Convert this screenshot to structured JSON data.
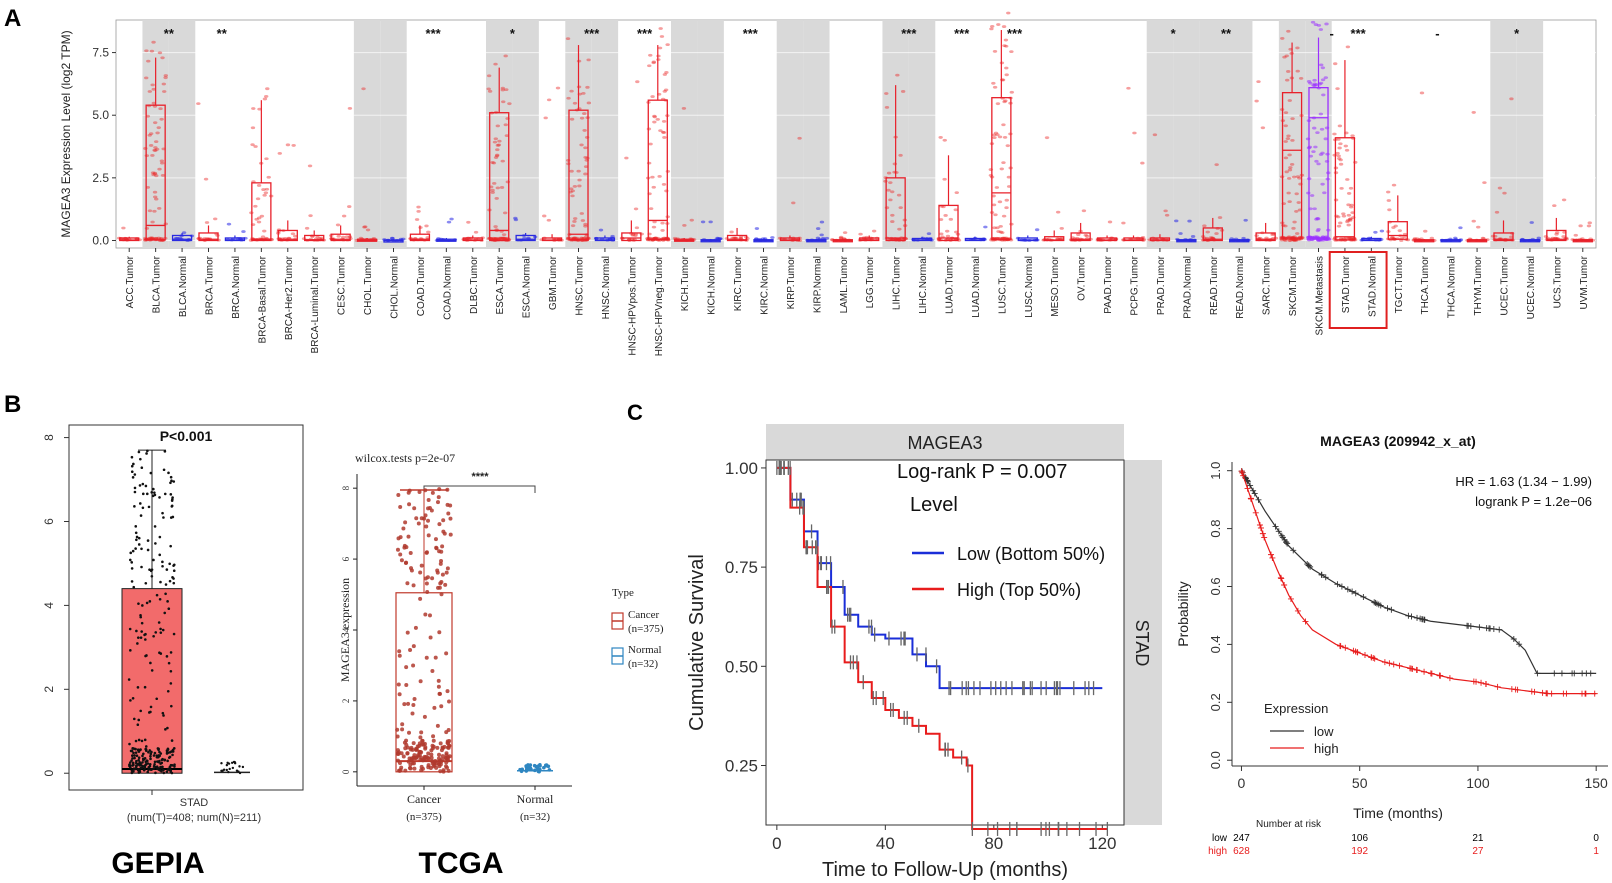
{
  "panel_labels": {
    "a": "A",
    "b": "B",
    "c": "C"
  },
  "chart_data": [
    {
      "id": "pan_cancer",
      "type": "box",
      "ylabel": "MAGEA3 Expression Level (log2 TPM)",
      "yticks": [
        "0.0",
        "2.5",
        "5.0",
        "7.5"
      ],
      "ylim": [
        -0.3,
        8.8
      ],
      "groups": [
        {
          "label": "ACC.Tumor",
          "shade": false,
          "sig": "",
          "kind": "tumor",
          "q1": 0,
          "med": 0.02,
          "q3": 0.1,
          "whi": 0.15
        },
        {
          "label": "BLCA.Tumor",
          "shade": true,
          "sig": "**",
          "kind": "tumor",
          "q1": 0.02,
          "med": 0.6,
          "q3": 5.4,
          "whi": 7.3
        },
        {
          "label": "BLCA.Normal",
          "shade": true,
          "sig": "",
          "kind": "normal",
          "q1": 0,
          "med": 0.05,
          "q3": 0.2,
          "whi": 0.3
        },
        {
          "label": "BRCA.Tumor",
          "shade": false,
          "sig": "**",
          "kind": "tumor",
          "q1": 0,
          "med": 0.05,
          "q3": 0.3,
          "whi": 0.6
        },
        {
          "label": "BRCA.Normal",
          "shade": false,
          "sig": "",
          "kind": "normal",
          "q1": 0,
          "med": 0.02,
          "q3": 0.1,
          "whi": 0.2
        },
        {
          "label": "BRCA-Basal.Tumor",
          "shade": false,
          "sig": "",
          "kind": "tumor",
          "q1": 0,
          "med": 0.05,
          "q3": 2.3,
          "whi": 5.6
        },
        {
          "label": "BRCA-Her2.Tumor",
          "shade": false,
          "sig": "",
          "kind": "tumor",
          "q1": 0,
          "med": 0.05,
          "q3": 0.4,
          "whi": 0.8
        },
        {
          "label": "BRCA-Luminal.Tumor",
          "shade": false,
          "sig": "",
          "kind": "tumor",
          "q1": 0,
          "med": 0.03,
          "q3": 0.2,
          "whi": 0.4
        },
        {
          "label": "CESC.Tumor",
          "shade": false,
          "sig": "",
          "kind": "tumor",
          "q1": 0,
          "med": 0.05,
          "q3": 0.25,
          "whi": 0.6
        },
        {
          "label": "CHOL.Tumor",
          "shade": true,
          "sig": "",
          "kind": "tumor",
          "q1": 0,
          "med": 0.0,
          "q3": 0.05,
          "whi": 0.1
        },
        {
          "label": "CHOL.Normal",
          "shade": true,
          "sig": "",
          "kind": "normal",
          "q1": 0,
          "med": 0.0,
          "q3": 0.02,
          "whi": 0.05
        },
        {
          "label": "COAD.Tumor",
          "shade": false,
          "sig": "***",
          "kind": "tumor",
          "q1": 0,
          "med": 0.05,
          "q3": 0.25,
          "whi": 0.6
        },
        {
          "label": "COAD.Normal",
          "shade": false,
          "sig": "",
          "kind": "normal",
          "q1": 0,
          "med": 0.0,
          "q3": 0.05,
          "whi": 0.1
        },
        {
          "label": "DLBC.Tumor",
          "shade": false,
          "sig": "",
          "kind": "tumor",
          "q1": 0,
          "med": 0.02,
          "q3": 0.1,
          "whi": 0.2
        },
        {
          "label": "ESCA.Tumor",
          "shade": true,
          "sig": "*",
          "kind": "tumor",
          "q1": 0,
          "med": 0.4,
          "q3": 5.1,
          "whi": 6.9
        },
        {
          "label": "ESCA.Normal",
          "shade": true,
          "sig": "",
          "kind": "normal",
          "q1": 0,
          "med": 0.05,
          "q3": 0.2,
          "whi": 0.3
        },
        {
          "label": "GBM.Tumor",
          "shade": false,
          "sig": "",
          "kind": "tumor",
          "q1": 0,
          "med": 0.02,
          "q3": 0.1,
          "whi": 0.25
        },
        {
          "label": "HNSC.Tumor",
          "shade": true,
          "sig": "***",
          "kind": "tumor",
          "q1": 0.02,
          "med": 0.25,
          "q3": 5.2,
          "whi": 7.8
        },
        {
          "label": "HNSC.Normal",
          "shade": true,
          "sig": "",
          "kind": "normal",
          "q1": 0,
          "med": 0.02,
          "q3": 0.1,
          "whi": 0.2
        },
        {
          "label": "HNSC-HPVpos.Tumor",
          "shade": false,
          "sig": "***",
          "kind": "tumor",
          "q1": 0,
          "med": 0.1,
          "q3": 0.3,
          "whi": 0.8
        },
        {
          "label": "HNSC-HPVneg.Tumor",
          "shade": false,
          "sig": "",
          "kind": "tumor",
          "q1": 0.05,
          "med": 0.8,
          "q3": 5.6,
          "whi": 7.8
        },
        {
          "label": "KICH.Tumor",
          "shade": true,
          "sig": "",
          "kind": "tumor",
          "q1": 0,
          "med": 0.0,
          "q3": 0.05,
          "whi": 0.1
        },
        {
          "label": "KICH.Normal",
          "shade": true,
          "sig": "",
          "kind": "normal",
          "q1": 0,
          "med": 0.0,
          "q3": 0.03,
          "whi": 0.06
        },
        {
          "label": "KIRC.Tumor",
          "shade": false,
          "sig": "***",
          "kind": "tumor",
          "q1": 0,
          "med": 0.03,
          "q3": 0.2,
          "whi": 0.5
        },
        {
          "label": "KIRC.Normal",
          "shade": false,
          "sig": "",
          "kind": "normal",
          "q1": 0,
          "med": 0.0,
          "q3": 0.03,
          "whi": 0.06
        },
        {
          "label": "KIRP.Tumor",
          "shade": true,
          "sig": "",
          "kind": "tumor",
          "q1": 0,
          "med": 0.02,
          "q3": 0.1,
          "whi": 0.2
        },
        {
          "label": "KIRP.Normal",
          "shade": true,
          "sig": "",
          "kind": "normal",
          "q1": 0,
          "med": 0.0,
          "q3": 0.03,
          "whi": 0.06
        },
        {
          "label": "LAML.Tumor",
          "shade": false,
          "sig": "",
          "kind": "tumor",
          "q1": 0,
          "med": 0.0,
          "q3": 0.03,
          "whi": 0.06
        },
        {
          "label": "LGG.Tumor",
          "shade": false,
          "sig": "",
          "kind": "tumor",
          "q1": 0,
          "med": 0.02,
          "q3": 0.1,
          "whi": 0.2
        },
        {
          "label": "LIHC.Tumor",
          "shade": true,
          "sig": "***",
          "kind": "tumor",
          "q1": 0,
          "med": 0.1,
          "q3": 2.5,
          "whi": 6.2
        },
        {
          "label": "LIHC.Normal",
          "shade": true,
          "sig": "",
          "kind": "normal",
          "q1": 0,
          "med": 0.02,
          "q3": 0.08,
          "whi": 0.15
        },
        {
          "label": "LUAD.Tumor",
          "shade": false,
          "sig": "***",
          "kind": "tumor",
          "q1": 0,
          "med": 0.1,
          "q3": 1.4,
          "whi": 3.4
        },
        {
          "label": "LUAD.Normal",
          "shade": false,
          "sig": "",
          "kind": "normal",
          "q1": 0,
          "med": 0.02,
          "q3": 0.08,
          "whi": 0.15
        },
        {
          "label": "LUSC.Tumor",
          "shade": false,
          "sig": "***",
          "kind": "tumor",
          "q1": 0.05,
          "med": 1.9,
          "q3": 5.7,
          "whi": 8.4
        },
        {
          "label": "LUSC.Normal",
          "shade": false,
          "sig": "",
          "kind": "normal",
          "q1": 0,
          "med": 0.02,
          "q3": 0.1,
          "whi": 0.2
        },
        {
          "label": "MESO.Tumor",
          "shade": false,
          "sig": "",
          "kind": "tumor",
          "q1": 0,
          "med": 0.02,
          "q3": 0.15,
          "whi": 0.4
        },
        {
          "label": "OV.Tumor",
          "shade": false,
          "sig": "",
          "kind": "tumor",
          "q1": 0,
          "med": 0.05,
          "q3": 0.3,
          "whi": 0.7
        },
        {
          "label": "PAAD.Tumor",
          "shade": false,
          "sig": "",
          "kind": "tumor",
          "q1": 0,
          "med": 0.02,
          "q3": 0.1,
          "whi": 0.2
        },
        {
          "label": "PCPG.Tumor",
          "shade": false,
          "sig": "",
          "kind": "tumor",
          "q1": 0,
          "med": 0.02,
          "q3": 0.1,
          "whi": 0.2
        },
        {
          "label": "PRAD.Tumor",
          "shade": true,
          "sig": "*",
          "kind": "tumor",
          "q1": 0,
          "med": 0.02,
          "q3": 0.1,
          "whi": 0.25
        },
        {
          "label": "PRAD.Normal",
          "shade": true,
          "sig": "",
          "kind": "normal",
          "q1": 0,
          "med": 0.0,
          "q3": 0.03,
          "whi": 0.06
        },
        {
          "label": "READ.Tumor",
          "shade": true,
          "sig": "**",
          "kind": "tumor",
          "q1": 0,
          "med": 0.05,
          "q3": 0.5,
          "whi": 0.9
        },
        {
          "label": "READ.Normal",
          "shade": true,
          "sig": "",
          "kind": "normal",
          "q1": 0,
          "med": 0.0,
          "q3": 0.03,
          "whi": 0.06
        },
        {
          "label": "SARC.Tumor",
          "shade": false,
          "sig": "",
          "kind": "tumor",
          "q1": 0,
          "med": 0.05,
          "q3": 0.3,
          "whi": 0.7
        },
        {
          "label": "SKCM.Tumor",
          "shade": true,
          "sig": "",
          "kind": "tumor",
          "q1": 0.1,
          "med": 3.6,
          "q3": 5.9,
          "whi": 7.9
        },
        {
          "label": "SKCM.Metastasis",
          "shade": true,
          "sig": "-",
          "kind": "metastasis",
          "q1": 0.1,
          "med": 4.9,
          "q3": 6.1,
          "whi": 8.1
        },
        {
          "label": "STAD.Tumor",
          "shade": false,
          "sig": "***",
          "kind": "tumor",
          "q1": 0.02,
          "med": 0.15,
          "q3": 4.1,
          "whi": 7.2
        },
        {
          "label": "STAD.Normal",
          "shade": false,
          "sig": "",
          "kind": "normal",
          "q1": 0,
          "med": 0.02,
          "q3": 0.08,
          "whi": 0.15
        },
        {
          "label": "TGCT.Tumor",
          "shade": false,
          "sig": "",
          "kind": "tumor",
          "q1": 0.05,
          "med": 0.2,
          "q3": 0.75,
          "whi": 1.8
        },
        {
          "label": "THCA.Tumor",
          "shade": false,
          "sig": "-",
          "kind": "tumor",
          "q1": 0,
          "med": 0.0,
          "q3": 0.03,
          "whi": 0.06
        },
        {
          "label": "THCA.Normal",
          "shade": false,
          "sig": "",
          "kind": "normal",
          "q1": 0,
          "med": 0.0,
          "q3": 0.03,
          "whi": 0.06
        },
        {
          "label": "THYM.Tumor",
          "shade": false,
          "sig": "",
          "kind": "tumor",
          "q1": 0,
          "med": 0.0,
          "q3": 0.03,
          "whi": 0.06
        },
        {
          "label": "UCEC.Tumor",
          "shade": true,
          "sig": "*",
          "kind": "tumor",
          "q1": 0,
          "med": 0.05,
          "q3": 0.3,
          "whi": 0.8
        },
        {
          "label": "UCEC.Normal",
          "shade": true,
          "sig": "",
          "kind": "normal",
          "q1": 0,
          "med": 0.0,
          "q3": 0.03,
          "whi": 0.06
        },
        {
          "label": "UCS.Tumor",
          "shade": false,
          "sig": "",
          "kind": "tumor",
          "q1": 0,
          "med": 0.05,
          "q3": 0.4,
          "whi": 0.9
        },
        {
          "label": "UVM.Tumor",
          "shade": false,
          "sig": "",
          "kind": "tumor",
          "q1": 0,
          "med": 0.0,
          "q3": 0.03,
          "whi": 0.06
        }
      ],
      "highlight": [
        "STAD.Tumor",
        "STAD.Normal"
      ]
    },
    {
      "id": "gepia",
      "type": "box",
      "title": "P<0.001",
      "xlabel": "STAD",
      "xsub": "(num(T)=408; num(N)=211)",
      "caption": "GEPIA",
      "yticks": [
        "0",
        "2",
        "4",
        "6",
        "8"
      ],
      "ylim": [
        -0.4,
        8.3
      ],
      "tumor": {
        "q1": 0.0,
        "med": 0.1,
        "q3": 4.4,
        "whi": 7.7
      },
      "normal": {
        "q1": 0.0,
        "med": 0.0,
        "q3": 0.05,
        "whi": 0.3
      }
    },
    {
      "id": "tcga",
      "type": "box",
      "title": "wilcox.tests p=2e-07",
      "sig": "****",
      "ylabel": "MAGEA3 expression",
      "yticks": [
        "0",
        "2",
        "4",
        "6",
        "8"
      ],
      "ylim": [
        -0.4,
        8.4
      ],
      "categories": [
        "Cancer",
        "Normal"
      ],
      "cat_n": [
        "(n=375)",
        "(n=32)"
      ],
      "caption": "TCGA",
      "legend_title": "Type",
      "legend": [
        {
          "name": "Cancer",
          "n": "(n=375)"
        },
        {
          "name": "Normal",
          "n": "(n=32)"
        }
      ],
      "cancer": {
        "q1": 0.0,
        "med": 0.3,
        "q3": 5.05,
        "whi": 7.95
      },
      "normal": {
        "q1": 0.0,
        "med": 0.03,
        "q3": 0.08,
        "whi": 0.2
      }
    },
    {
      "id": "km_magea3",
      "type": "line",
      "strip_title": "MAGEA3",
      "strip_side": "STAD",
      "ylabel": "Cumulative Survival",
      "xlabel": "Time to Follow-Up (months)",
      "xticks": [
        "0",
        "40",
        "80",
        "120"
      ],
      "yticks": [
        "0.25",
        "0.50",
        "0.75",
        "1.00"
      ],
      "xlim": [
        -4,
        128
      ],
      "ylim": [
        0.1,
        1.02
      ],
      "annotation": "Log-rank P = 0.007",
      "legend_title": "Level",
      "series": [
        {
          "name": "Low (Bottom 50%)",
          "color": "#1a2ed8",
          "x": [
            0,
            5,
            10,
            15,
            20,
            25,
            30,
            35,
            40,
            45,
            50,
            55,
            60,
            70,
            80,
            100,
            120
          ],
          "y": [
            1.0,
            0.92,
            0.84,
            0.76,
            0.7,
            0.63,
            0.6,
            0.58,
            0.57,
            0.57,
            0.53,
            0.5,
            0.445,
            0.445,
            0.445,
            0.445,
            0.445
          ]
        },
        {
          "name": "High (Top 50%)",
          "color": "#e81c1c",
          "x": [
            0,
            5,
            10,
            15,
            20,
            25,
            30,
            35,
            40,
            45,
            50,
            55,
            60,
            65,
            70,
            72,
            80,
            100,
            122
          ],
          "y": [
            1.0,
            0.9,
            0.8,
            0.7,
            0.6,
            0.51,
            0.46,
            0.42,
            0.39,
            0.37,
            0.35,
            0.33,
            0.29,
            0.27,
            0.25,
            0.09,
            0.09,
            0.09,
            0.09
          ]
        }
      ]
    },
    {
      "id": "km_209942",
      "type": "line",
      "title": "MAGEA3 (209942_x_at)",
      "ylabel": "Probability",
      "xlabel": "Time (months)",
      "xticks": [
        "0",
        "50",
        "100",
        "150"
      ],
      "yticks": [
        "0.0",
        "0.2",
        "0.4",
        "0.6",
        "0.8",
        "1.0"
      ],
      "xlim": [
        -4,
        155
      ],
      "ylim": [
        -0.02,
        1.03
      ],
      "hr": "HR = 1.63 (1.34 − 1.99)",
      "logrank": "logrank P = 1.2e−06",
      "legend_title": "Expression",
      "series": [
        {
          "name": "low",
          "color": "#333333",
          "x": [
            0,
            5,
            10,
            15,
            20,
            30,
            40,
            50,
            60,
            70,
            80,
            90,
            100,
            110,
            115,
            120,
            125,
            130,
            140,
            150
          ],
          "y": [
            1.0,
            0.93,
            0.86,
            0.8,
            0.74,
            0.66,
            0.61,
            0.57,
            0.53,
            0.5,
            0.48,
            0.47,
            0.46,
            0.45,
            0.42,
            0.38,
            0.3,
            0.3,
            0.3,
            0.3
          ]
        },
        {
          "name": "high",
          "color": "#e81c1c",
          "x": [
            0,
            5,
            10,
            15,
            20,
            25,
            30,
            40,
            50,
            60,
            70,
            80,
            90,
            100,
            110,
            120,
            130,
            140,
            150
          ],
          "y": [
            1.0,
            0.88,
            0.76,
            0.66,
            0.57,
            0.5,
            0.45,
            0.4,
            0.37,
            0.34,
            0.32,
            0.3,
            0.28,
            0.27,
            0.25,
            0.24,
            0.23,
            0.23,
            0.23
          ]
        }
      ],
      "risk_title": "Number at risk",
      "risk": [
        {
          "name": "low",
          "color": "#000000",
          "values": [
            "247",
            "106",
            "21",
            "0"
          ]
        },
        {
          "name": "high",
          "color": "#e81c1c",
          "values": [
            "628",
            "192",
            "27",
            "1"
          ]
        }
      ]
    }
  ]
}
